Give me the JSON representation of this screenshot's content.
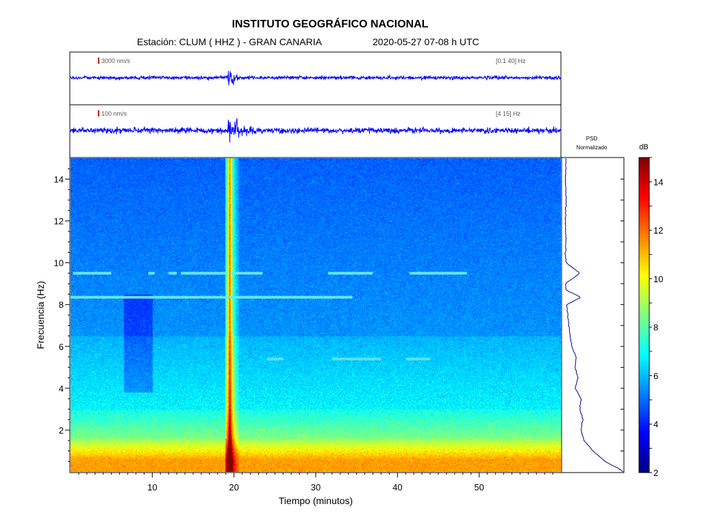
{
  "header": {
    "title": "INSTITUTO GEOGRÁFICO NACIONAL",
    "station": "Estación:  CLUM ( HHZ ) - GRAN CANARIA",
    "datetime": "2020-05-27  07-08 h UTC"
  },
  "colors": {
    "trace": "#0000ff",
    "scale_bar": "#cc0000",
    "psd_line": "#00008b"
  },
  "chart_data": [
    {
      "type": "line",
      "name": "seismogram-broadband",
      "scale_label": "3000 nm/s",
      "band_label": "[0.1 40] Hz",
      "event_minute": 19.2,
      "noise_level": 0.12,
      "peak_level": 1.0,
      "xlim": [
        0,
        60
      ]
    },
    {
      "type": "line",
      "name": "seismogram-filtered",
      "scale_label": "100 nm/s",
      "band_label": "[4 15] Hz",
      "event_minute": 19.2,
      "noise_level": 0.18,
      "peak_level": 1.0,
      "xlim": [
        0,
        60
      ]
    },
    {
      "type": "heatmap",
      "name": "spectrogram",
      "xlabel": "Tiempo (minutos)",
      "ylabel": "Frecuencia (Hz)",
      "xlim": [
        0,
        60
      ],
      "ylim": [
        0,
        15
      ],
      "x_ticks": [
        10,
        20,
        30,
        40,
        50
      ],
      "y_ticks": [
        2,
        4,
        6,
        8,
        10,
        12,
        14
      ],
      "event_minute": 19.2,
      "tonal_lines": [
        {
          "freq": 8.35,
          "segments": [
            [
              0,
              34.5
            ]
          ]
        },
        {
          "freq": 9.5,
          "segments": [
            [
              0.3,
              5
            ],
            [
              9.5,
              10.3
            ],
            [
              12,
              13
            ],
            [
              13.5,
              19
            ],
            [
              19.5,
              23.5
            ],
            [
              31.5,
              37
            ],
            [
              41.5,
              48.5
            ]
          ]
        },
        {
          "freq": 5.4,
          "segments": [
            [
              24,
              26
            ],
            [
              32,
              38
            ],
            [
              41,
              44
            ]
          ]
        }
      ]
    },
    {
      "type": "line",
      "name": "psd",
      "title": "PSD\nNormalizado",
      "freq": [
        0.0,
        0.2,
        0.5,
        1.0,
        1.5,
        2.0,
        2.5,
        3.0,
        3.5,
        4.0,
        4.5,
        5.0,
        5.5,
        6.0,
        6.5,
        7.0,
        7.5,
        8.0,
        8.35,
        8.7,
        9.0,
        9.5,
        10.0,
        10.5,
        11.0,
        12.0,
        13.0,
        14.0,
        15.0
      ],
      "value": [
        1.0,
        0.9,
        0.7,
        0.5,
        0.35,
        0.3,
        0.33,
        0.28,
        0.3,
        0.2,
        0.25,
        0.2,
        0.22,
        0.15,
        0.12,
        0.1,
        0.08,
        0.06,
        0.3,
        0.05,
        0.04,
        0.28,
        0.05,
        0.04,
        0.05,
        0.04,
        0.05,
        0.04,
        0.05
      ],
      "xlim": [
        0,
        1
      ],
      "ylim": [
        0,
        15
      ]
    },
    {
      "type": "colorbar",
      "name": "colorbar",
      "label": "dB",
      "range": [
        2,
        15
      ],
      "ticks": [
        2,
        4,
        6,
        8,
        10,
        12,
        14
      ]
    }
  ]
}
